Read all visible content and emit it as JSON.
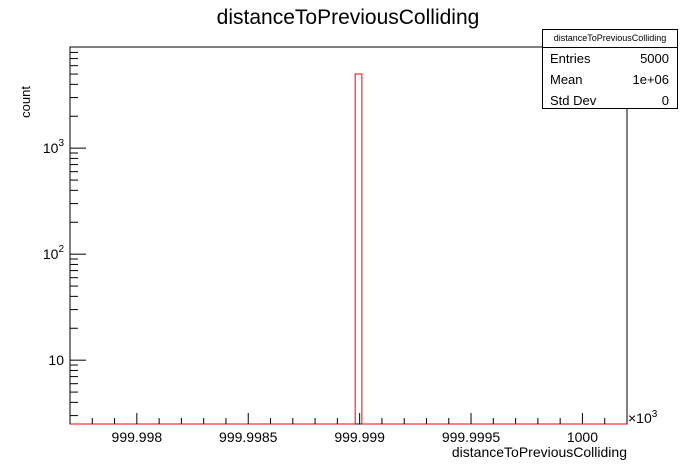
{
  "chart_data": {
    "type": "bar",
    "title": "distanceToPreviousColliding",
    "xlabel": "distanceToPreviousColliding",
    "ylabel": "count",
    "x_exponent_label": "×10",
    "x_exponent_power": "3",
    "xlim": [
      999.9977,
      1000.0002
    ],
    "ylog": true,
    "ylim": [
      2.5,
      9000
    ],
    "x_ticks": [
      {
        "value": 999.998,
        "label": "999.998"
      },
      {
        "value": 999.9985,
        "label": "999.9985"
      },
      {
        "value": 999.999,
        "label": "999.999"
      },
      {
        "value": 999.9995,
        "label": "999.9995"
      },
      {
        "value": 1000.0,
        "label": "1000"
      }
    ],
    "y_ticks": [
      {
        "value": 10,
        "base": "10",
        "exp": ""
      },
      {
        "value": 100,
        "base": "10",
        "exp": "2"
      },
      {
        "value": 1000,
        "base": "10",
        "exp": "3"
      }
    ],
    "bins": [
      {
        "x_low": 999.99898,
        "x_high": 999.99901,
        "count": 5000
      }
    ],
    "line_color": "#ff0000",
    "axis_color": "#000000"
  },
  "stats": {
    "title": "distanceToPreviousColliding",
    "rows": [
      {
        "key": "Entries",
        "value": "5000"
      },
      {
        "key": "Mean",
        "value": "1e+06"
      },
      {
        "key": "Std Dev",
        "value": "0"
      }
    ]
  }
}
